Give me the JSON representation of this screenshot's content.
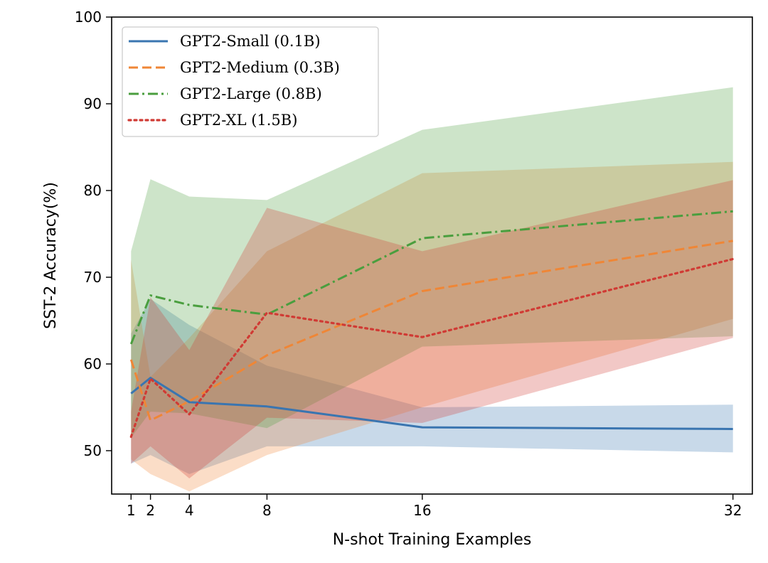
{
  "chart_data": {
    "type": "line",
    "title": "",
    "xlabel": "N-shot Training Examples",
    "ylabel": "SST-2 Accuracy(%)",
    "x": [
      1,
      2,
      4,
      8,
      16,
      32
    ],
    "x_ticks": [
      1,
      2,
      4,
      8,
      16,
      32
    ],
    "x_tick_labels": [
      "1",
      "2",
      "4",
      "8",
      "16",
      "32"
    ],
    "y_ticks": [
      50,
      60,
      70,
      80,
      90,
      100
    ],
    "y_tick_labels": [
      "50",
      "60",
      "70",
      "80",
      "90",
      "100"
    ],
    "xlim": [
      0,
      33
    ],
    "ylim": [
      45,
      100
    ],
    "grid": false,
    "legend_position": "top-left",
    "series": [
      {
        "name": "GPT2-Small (0.1B)",
        "color": "#3a75b0",
        "line_style": "solid",
        "values": [
          56.6,
          58.4,
          55.6,
          55.1,
          52.7,
          52.5
        ],
        "band_upper": [
          63.5,
          67.5,
          64.5,
          59.8,
          55.0,
          55.3
        ],
        "band_lower": [
          48.5,
          49.5,
          47.3,
          50.5,
          50.5,
          49.8
        ]
      },
      {
        "name": "GPT2-Medium (0.3B)",
        "color": "#ef8636",
        "line_style": "dashed",
        "values": [
          60.5,
          53.5,
          55.7,
          61.0,
          68.4,
          74.2
        ],
        "band_upper": [
          72.0,
          58.5,
          63.0,
          73.0,
          82.0,
          83.3
        ],
        "band_lower": [
          49.0,
          47.3,
          45.3,
          49.5,
          55.0,
          65.2
        ]
      },
      {
        "name": "GPT2-Large (0.8B)",
        "color": "#4a9e3e",
        "line_style": "dashdot",
        "values": [
          62.3,
          67.9,
          66.8,
          65.7,
          74.5,
          77.6
        ],
        "band_upper": [
          73.0,
          81.3,
          79.3,
          78.9,
          87.0,
          91.9
        ],
        "band_lower": [
          51.5,
          54.5,
          54.3,
          52.6,
          62.0,
          63.2
        ]
      },
      {
        "name": "GPT2-XL (1.5B)",
        "color": "#d03a34",
        "line_style": "dotted",
        "values": [
          51.6,
          58.3,
          54.2,
          65.9,
          63.1,
          72.1
        ],
        "band_upper": [
          54.5,
          67.7,
          61.6,
          78.0,
          73.0,
          81.2
        ],
        "band_lower": [
          48.5,
          50.5,
          46.8,
          53.8,
          53.2,
          63.0
        ]
      }
    ]
  }
}
